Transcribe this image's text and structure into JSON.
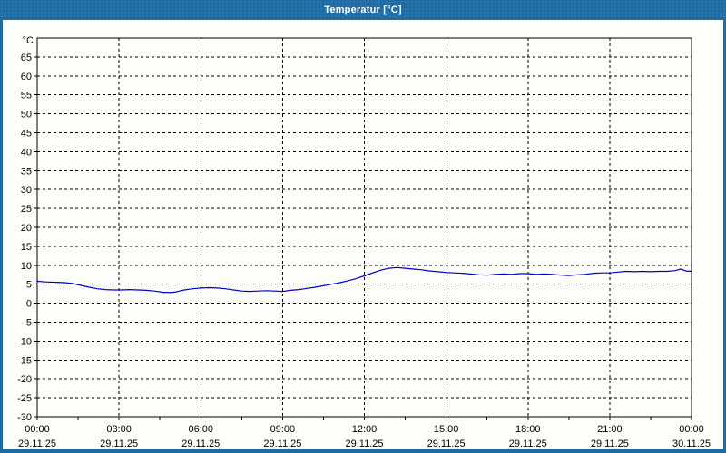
{
  "window": {
    "title": "Temperatur [°C]"
  },
  "colors": {
    "titlebar": "#1e6ba4",
    "titlebar_text": "#ffffff",
    "window_border": "#1e6ba4",
    "content_background": "#fdfefa",
    "grid": "#000000",
    "frame": "#000000",
    "tick_text": "#000000",
    "line": "#0000cc"
  },
  "chart_data": {
    "type": "line",
    "title": "Temperatur [°C]",
    "xlabel": "",
    "ylabel": "°C",
    "grid": "dashed",
    "legend": "none",
    "y_axis": {
      "label": "°C",
      "min": -30,
      "max": 70,
      "tick_step": 5,
      "tick_labels": [
        65,
        60,
        55,
        50,
        45,
        40,
        35,
        30,
        25,
        20,
        15,
        10,
        5,
        0,
        -5,
        -10,
        -15,
        -20,
        -25,
        -30
      ]
    },
    "x_axis": {
      "span_hours": 24,
      "major_interval_hours": 3,
      "minor_tick_interval_hours": 1.5,
      "labels": [
        {
          "hour": 0,
          "time": "00:00",
          "date": "29.11.25"
        },
        {
          "hour": 3,
          "time": "03:00",
          "date": "29.11.25"
        },
        {
          "hour": 6,
          "time": "06:00",
          "date": "29.11.25"
        },
        {
          "hour": 9,
          "time": "09:00",
          "date": "29.11.25"
        },
        {
          "hour": 12,
          "time": "12:00",
          "date": "29.11.25"
        },
        {
          "hour": 15,
          "time": "15:00",
          "date": "29.11.25"
        },
        {
          "hour": 18,
          "time": "18:00",
          "date": "29.11.25"
        },
        {
          "hour": 21,
          "time": "21:00",
          "date": "29.11.25"
        },
        {
          "hour": 24,
          "time": "00:00",
          "date": "30.11.25"
        }
      ]
    },
    "series": [
      {
        "name": "Temperatur",
        "color": "#0000cc",
        "points": [
          [
            0.0,
            5.8
          ],
          [
            0.3,
            5.6
          ],
          [
            0.7,
            5.5
          ],
          [
            1.0,
            5.4
          ],
          [
            1.3,
            5.2
          ],
          [
            1.6,
            4.7
          ],
          [
            1.9,
            4.2
          ],
          [
            2.2,
            3.8
          ],
          [
            2.5,
            3.6
          ],
          [
            2.8,
            3.5
          ],
          [
            3.1,
            3.5
          ],
          [
            3.4,
            3.6
          ],
          [
            3.7,
            3.5
          ],
          [
            4.0,
            3.4
          ],
          [
            4.3,
            3.2
          ],
          [
            4.6,
            2.9
          ],
          [
            4.9,
            2.8
          ],
          [
            5.1,
            3.0
          ],
          [
            5.4,
            3.5
          ],
          [
            5.7,
            3.8
          ],
          [
            6.0,
            4.0
          ],
          [
            6.3,
            4.1
          ],
          [
            6.6,
            4.0
          ],
          [
            6.9,
            3.8
          ],
          [
            7.2,
            3.5
          ],
          [
            7.5,
            3.2
          ],
          [
            7.8,
            3.1
          ],
          [
            8.1,
            3.2
          ],
          [
            8.4,
            3.3
          ],
          [
            8.7,
            3.2
          ],
          [
            9.0,
            3.1
          ],
          [
            9.3,
            3.4
          ],
          [
            9.6,
            3.6
          ],
          [
            9.9,
            3.9
          ],
          [
            10.2,
            4.2
          ],
          [
            10.5,
            4.6
          ],
          [
            10.8,
            5.0
          ],
          [
            11.1,
            5.4
          ],
          [
            11.4,
            5.9
          ],
          [
            11.7,
            6.5
          ],
          [
            12.0,
            7.2
          ],
          [
            12.3,
            8.0
          ],
          [
            12.6,
            8.7
          ],
          [
            12.9,
            9.2
          ],
          [
            13.2,
            9.4
          ],
          [
            13.5,
            9.2
          ],
          [
            13.8,
            9.0
          ],
          [
            14.1,
            8.8
          ],
          [
            14.4,
            8.5
          ],
          [
            14.7,
            8.3
          ],
          [
            15.0,
            8.1
          ],
          [
            15.3,
            8.0
          ],
          [
            15.6,
            7.9
          ],
          [
            15.9,
            7.7
          ],
          [
            16.2,
            7.5
          ],
          [
            16.5,
            7.4
          ],
          [
            16.8,
            7.6
          ],
          [
            17.1,
            7.7
          ],
          [
            17.4,
            7.6
          ],
          [
            17.7,
            7.8
          ],
          [
            18.0,
            7.8
          ],
          [
            18.3,
            7.6
          ],
          [
            18.6,
            7.7
          ],
          [
            18.9,
            7.6
          ],
          [
            19.2,
            7.4
          ],
          [
            19.5,
            7.3
          ],
          [
            19.8,
            7.5
          ],
          [
            20.1,
            7.6
          ],
          [
            20.4,
            7.9
          ],
          [
            20.7,
            8.0
          ],
          [
            21.0,
            8.0
          ],
          [
            21.3,
            8.2
          ],
          [
            21.6,
            8.4
          ],
          [
            21.9,
            8.3
          ],
          [
            22.2,
            8.4
          ],
          [
            22.5,
            8.3
          ],
          [
            22.8,
            8.4
          ],
          [
            23.1,
            8.4
          ],
          [
            23.4,
            8.6
          ],
          [
            23.6,
            9.0
          ],
          [
            23.8,
            8.5
          ],
          [
            24.0,
            8.4
          ]
        ]
      }
    ]
  }
}
